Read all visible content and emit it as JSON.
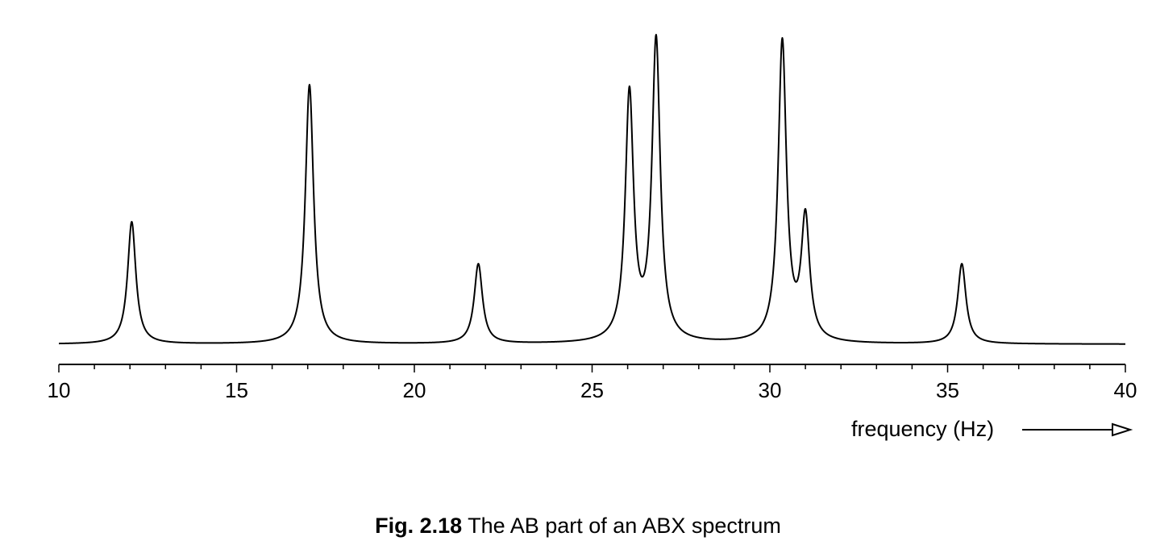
{
  "chart_data": {
    "type": "line",
    "xlabel": "frequency (Hz)",
    "ylabel": "",
    "xlim": [
      10,
      40
    ],
    "x_ticks": [
      10,
      15,
      20,
      25,
      30,
      35,
      40
    ],
    "x_tick_labels": [
      "10",
      "15",
      "20",
      "25",
      "30",
      "35",
      "40"
    ],
    "minor_tick_step": 1,
    "grid": false,
    "y_axis_shown": false,
    "peak_halfwidth_hz": 0.14,
    "baseline": 0.0,
    "peaks": [
      {
        "x": 12.05,
        "height": 0.38
      },
      {
        "x": 17.05,
        "height": 0.805
      },
      {
        "x": 21.8,
        "height": 0.25
      },
      {
        "x": 26.05,
        "height": 0.8
      },
      {
        "x": 26.8,
        "height": 0.96
      },
      {
        "x": 30.35,
        "height": 0.95
      },
      {
        "x": 31.0,
        "height": 0.42
      },
      {
        "x": 35.4,
        "height": 0.25
      }
    ],
    "line_color": "#000000",
    "arrow": "right-pointing open arrowhead after axis title"
  },
  "caption": {
    "label": "Fig. 2.18",
    "text": " The AB part of an ABX spectrum"
  }
}
